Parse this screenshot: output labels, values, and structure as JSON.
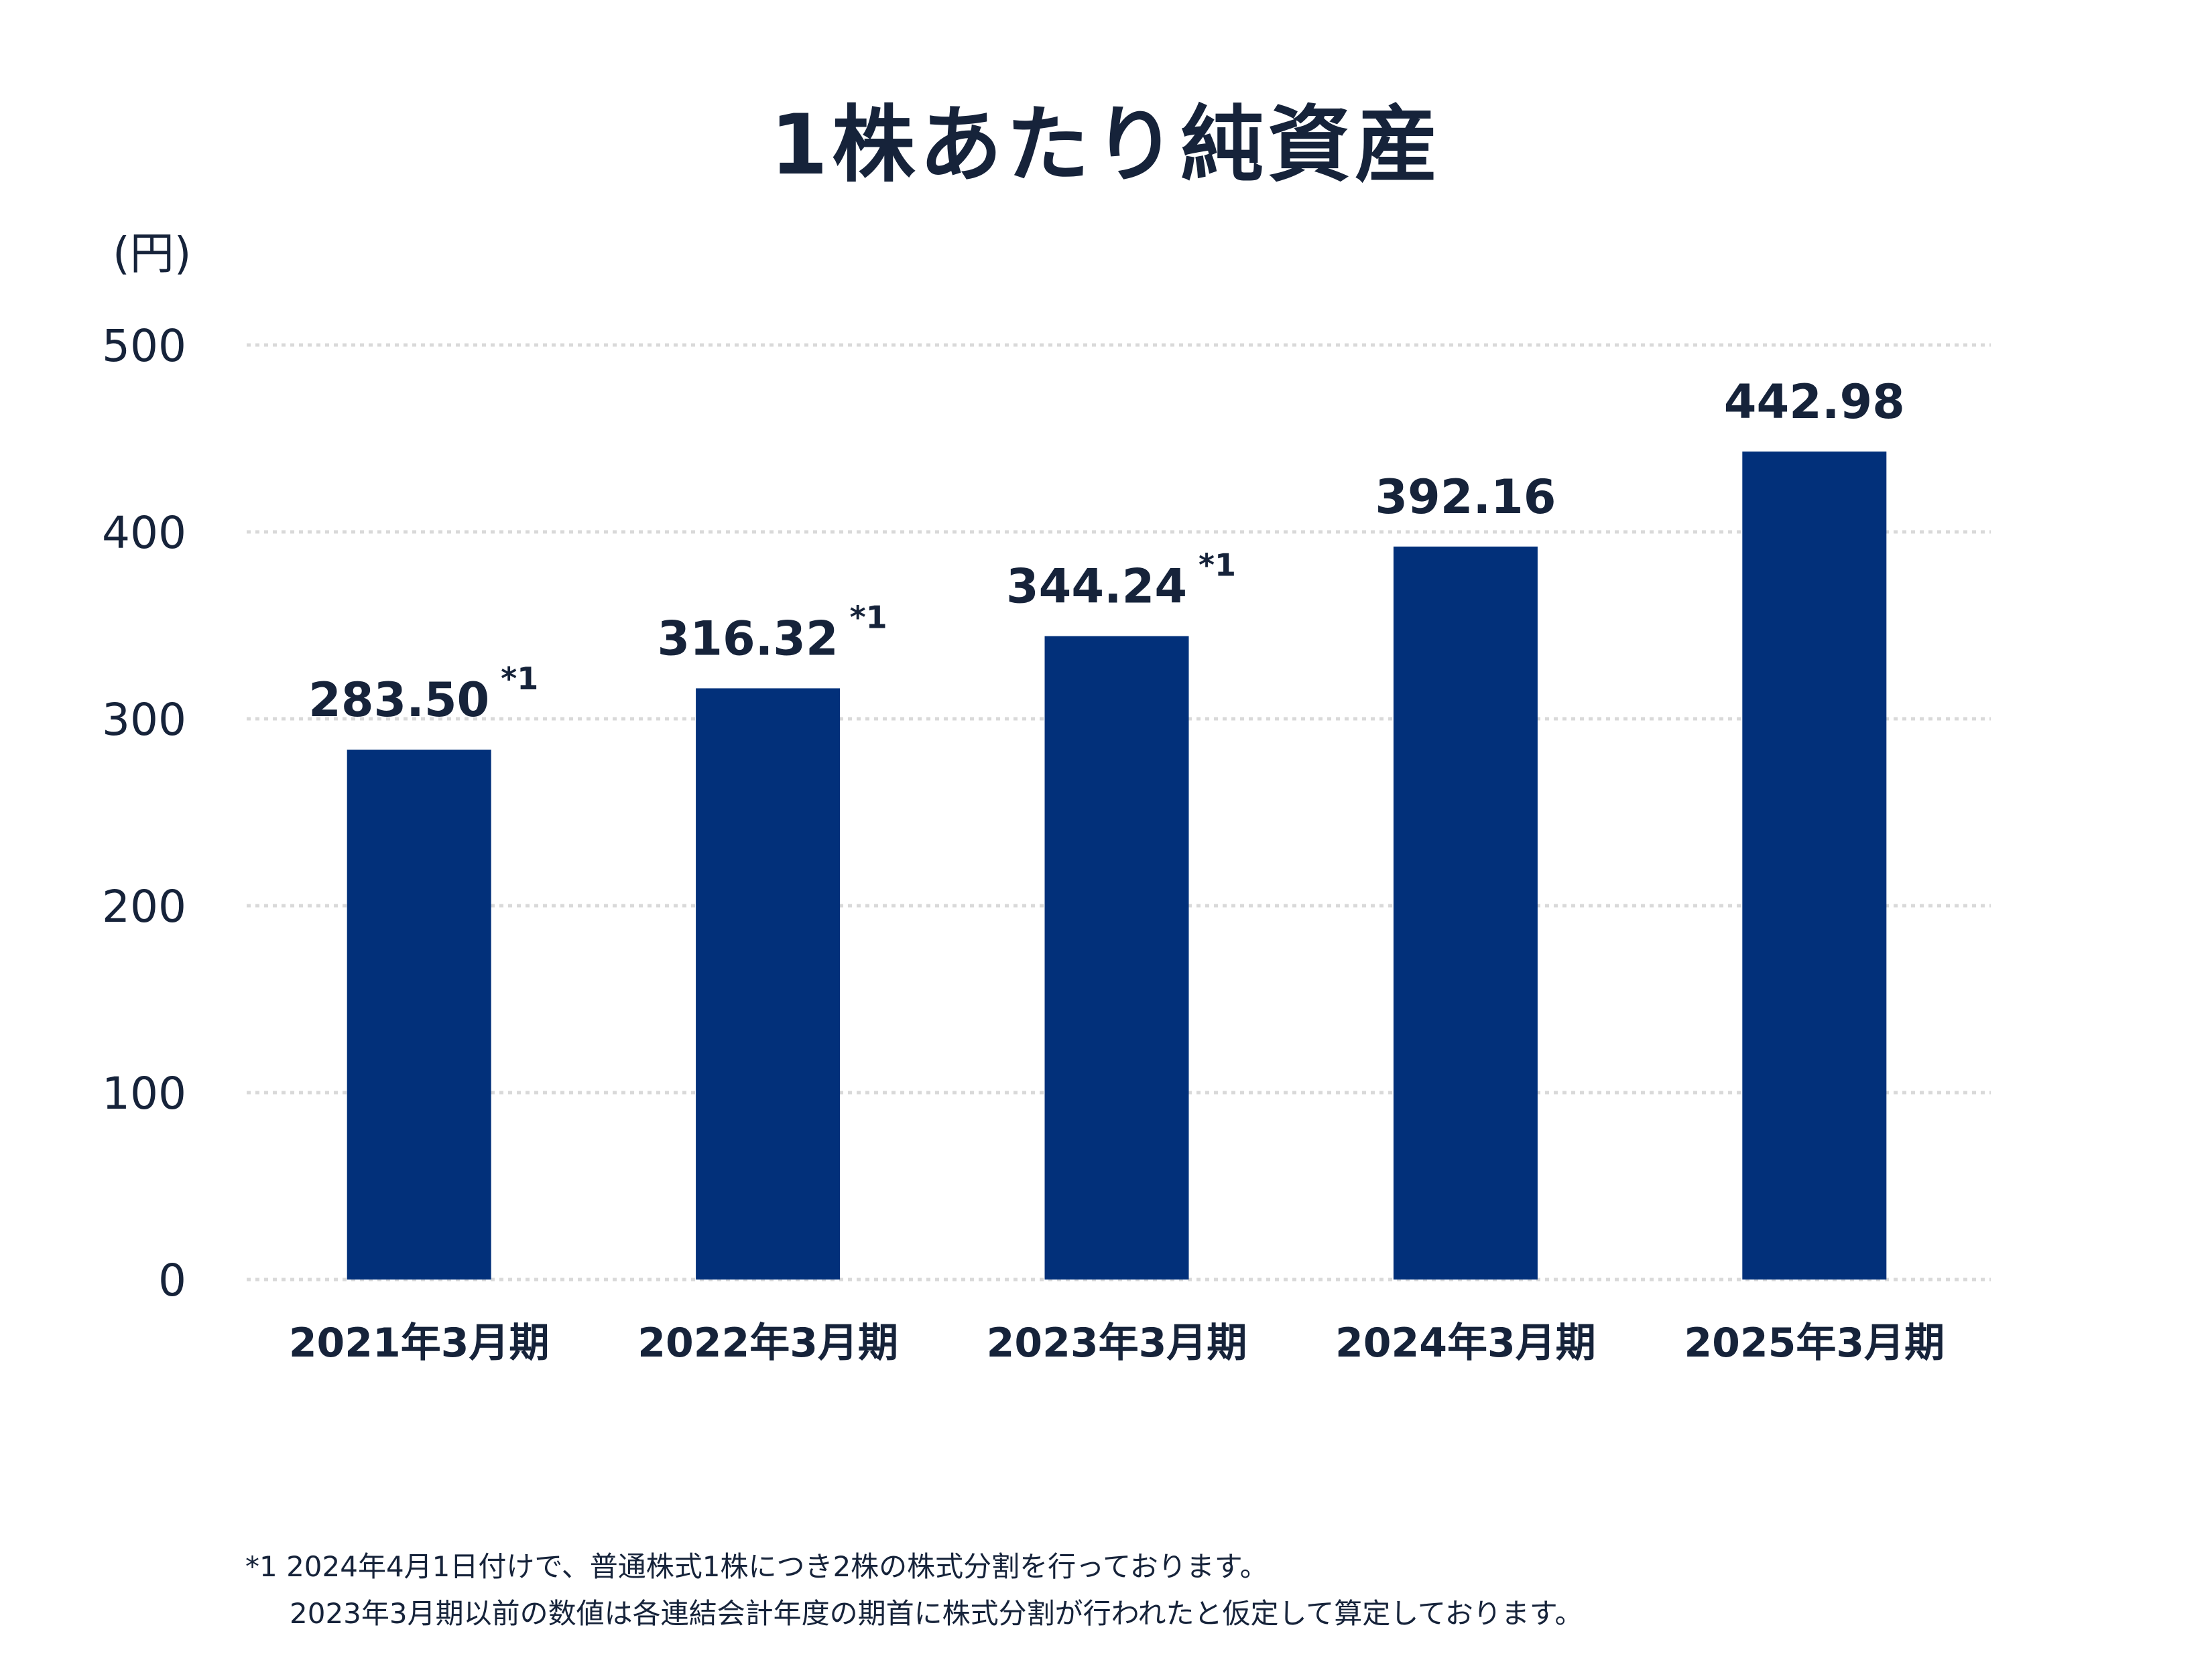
{
  "chart_data": {
    "type": "bar",
    "title": "1株あたり純資産",
    "ylabel": "(円)",
    "categories": [
      "2021年3月期",
      "2022年3月期",
      "2023年3月期",
      "2024年3月期",
      "2025年3月期"
    ],
    "values": [
      283.5,
      316.32,
      344.24,
      392.16,
      442.98
    ],
    "value_labels": [
      "283.50",
      "316.32",
      "344.24",
      "392.16",
      "442.98"
    ],
    "annotations": [
      "*1",
      "*1",
      "*1",
      "",
      ""
    ],
    "ylim": [
      0,
      500
    ],
    "yticks": [
      0,
      100,
      200,
      300,
      400,
      500
    ],
    "grid": true,
    "colors": {
      "bar": "#02307a",
      "text": "#16233a",
      "grid": "#d9d9d9"
    }
  },
  "footnotes": [
    "*1 2024年4月1日付けで、普通株式1株につき2株の株式分割を行っております。",
    "2023年3月期以前の数値は各連結会計年度の期首に株式分割が行われたと仮定して算定しております。"
  ]
}
